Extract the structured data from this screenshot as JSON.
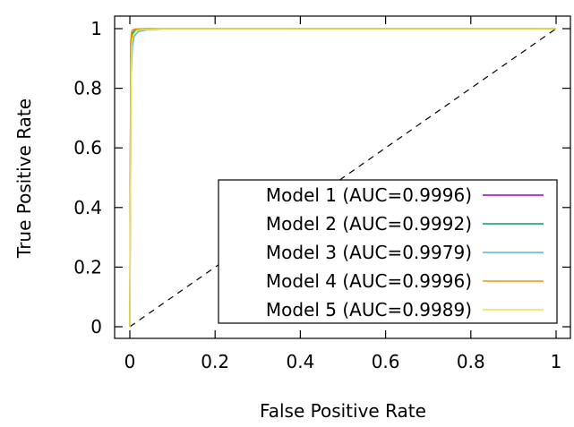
{
  "chart_data": {
    "type": "line",
    "xlabel": "False Positive Rate",
    "ylabel": "True Positive Rate",
    "xlim": [
      0,
      1
    ],
    "ylim": [
      0,
      1
    ],
    "x_ticks": [
      0,
      0.2,
      0.4,
      0.6,
      0.8,
      1
    ],
    "y_ticks": [
      0,
      0.2,
      0.4,
      0.6,
      0.8,
      1
    ],
    "x_tick_labels": [
      "0",
      "0.2",
      "0.4",
      "0.6",
      "0.8",
      "1"
    ],
    "y_tick_labels": [
      "0",
      "0.2",
      "0.4",
      "0.6",
      "0.8",
      "1"
    ],
    "grid": false,
    "legend_position": "bottom-right",
    "diagonal_reference": true,
    "series": [
      {
        "name": "Model 1 (AUC=0.9996)",
        "color": "#9400d3",
        "x": [
          0,
          0.002,
          0.004,
          0.006,
          0.01,
          0.02,
          0.05,
          1
        ],
        "y": [
          0,
          0.95,
          0.985,
          0.995,
          0.998,
          0.999,
          1,
          1
        ]
      },
      {
        "name": "Model 2 (AUC=0.9992)",
        "color": "#009e73",
        "x": [
          0,
          0.002,
          0.004,
          0.007,
          0.012,
          0.03,
          0.06,
          1
        ],
        "y": [
          0,
          0.9,
          0.965,
          0.985,
          0.995,
          0.998,
          1,
          1
        ]
      },
      {
        "name": "Model 3 (AUC=0.9979)",
        "color": "#56b4e9",
        "x": [
          0,
          0.003,
          0.006,
          0.01,
          0.02,
          0.04,
          0.08,
          1
        ],
        "y": [
          0,
          0.85,
          0.94,
          0.975,
          0.99,
          0.996,
          0.999,
          1
        ]
      },
      {
        "name": "Model 4 (AUC=0.9996)",
        "color": "#e69f00",
        "x": [
          0,
          0.002,
          0.004,
          0.006,
          0.01,
          0.02,
          0.05,
          1
        ],
        "y": [
          0,
          0.96,
          0.988,
          0.995,
          0.998,
          0.999,
          1,
          1
        ]
      },
      {
        "name": "Model 5 (AUC=0.9989)",
        "color": "#f0e442",
        "x": [
          0,
          0.003,
          0.005,
          0.008,
          0.015,
          0.03,
          0.07,
          1
        ],
        "y": [
          0,
          0.88,
          0.955,
          0.98,
          0.993,
          0.997,
          1,
          1
        ]
      }
    ]
  }
}
